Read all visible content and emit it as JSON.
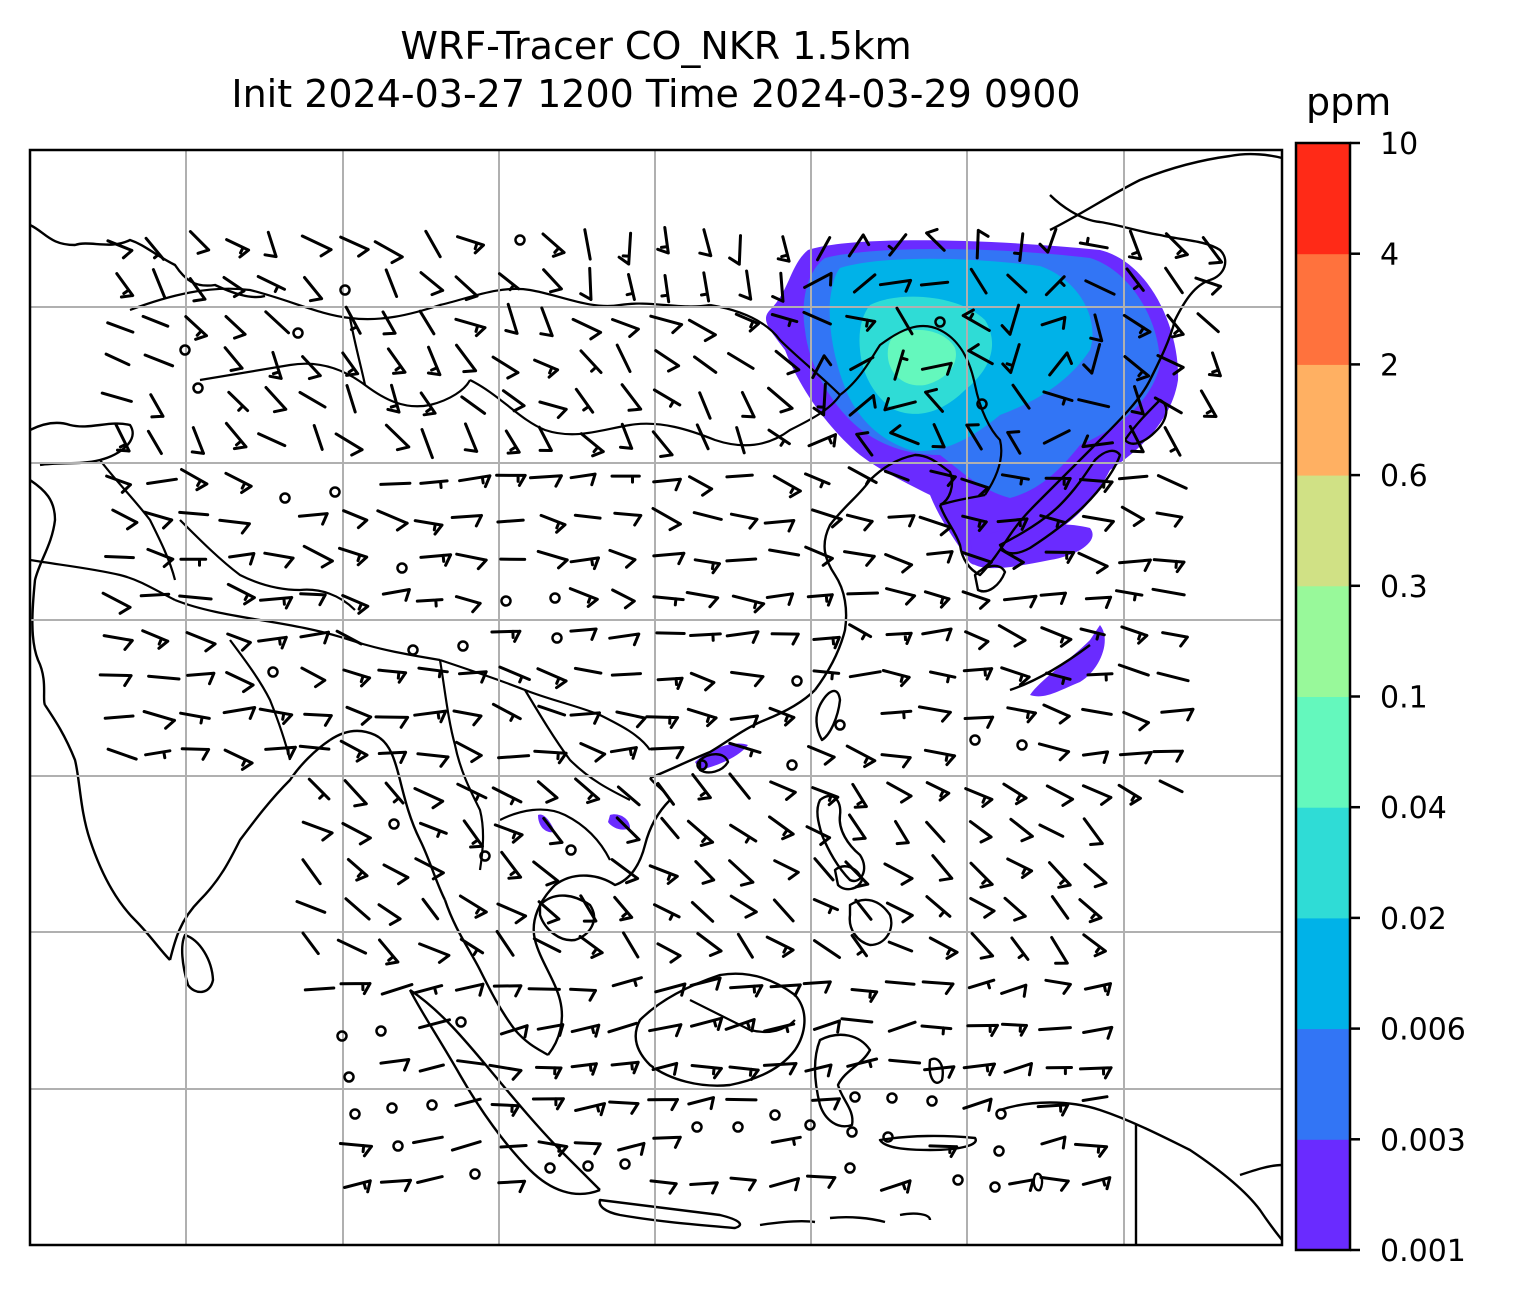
{
  "title": {
    "line1": "WRF-Tracer CO_NKR 1.5km",
    "line2": "Init 2024-03-27 1200 Time 2024-03-29 0900"
  },
  "colorbar": {
    "unit": "ppm",
    "levels": [
      "0.001",
      "0.003",
      "0.006",
      "0.02",
      "0.04",
      "0.1",
      "0.3",
      "0.6",
      "2",
      "4",
      "10"
    ],
    "colors": [
      "#6a2bff",
      "#3275f5",
      "#00b2e8",
      "#2fdcd6",
      "#64f8bd",
      "#98f99a",
      "#d0e185",
      "#ffb062",
      "#ff723d",
      "#ff2a17"
    ]
  },
  "map": {
    "gridlines": "on",
    "plume_colors": {
      "low": "#6a2bff",
      "mid": "#3275f5",
      "high": "#00b2e8",
      "core": "#2fdcd6",
      "peak": "#64f8bd"
    }
  }
}
